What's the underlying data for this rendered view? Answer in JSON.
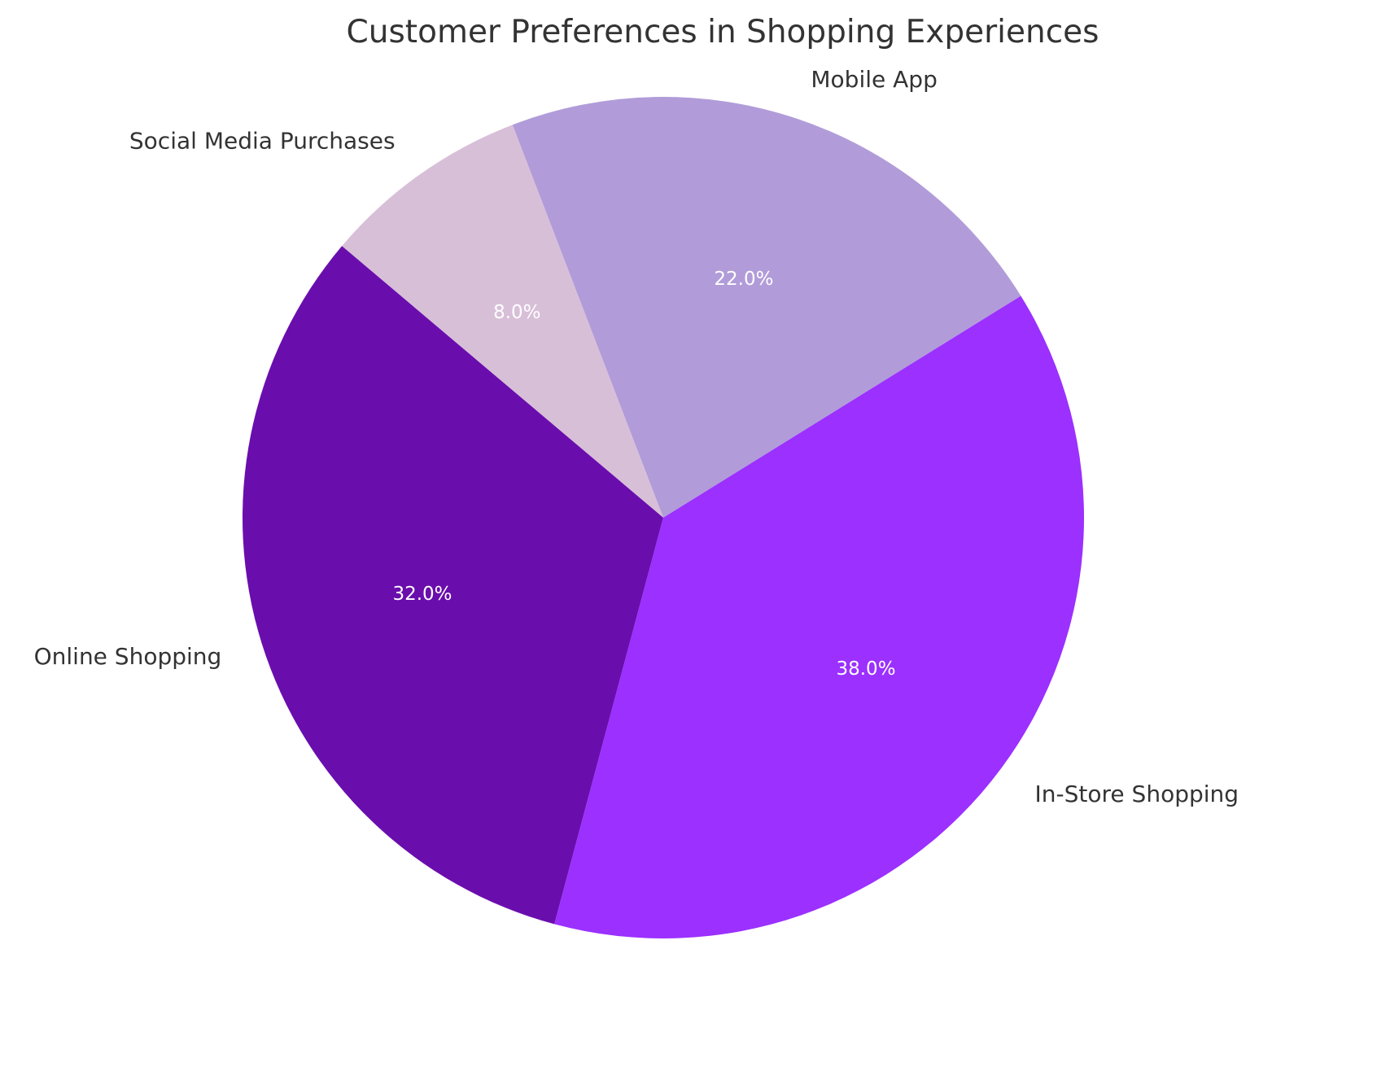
{
  "chart_data": {
    "type": "pie",
    "title": "Customer Preferences in Shopping Experiences",
    "categories": [
      "In-Store Shopping",
      "Online Shopping",
      "Mobile App",
      "Social Media Purchases"
    ],
    "values": [
      38.0,
      32.0,
      22.0,
      8.0
    ],
    "value_labels": [
      "38.0%",
      "32.0%",
      "22.0%",
      "8.0%"
    ],
    "colors": [
      "#9b30ff",
      "#6a0dad",
      "#b19cd9",
      "#d8bfd8"
    ],
    "start_angle": 31.8,
    "direction": "counterclockwise",
    "legend": "none"
  }
}
